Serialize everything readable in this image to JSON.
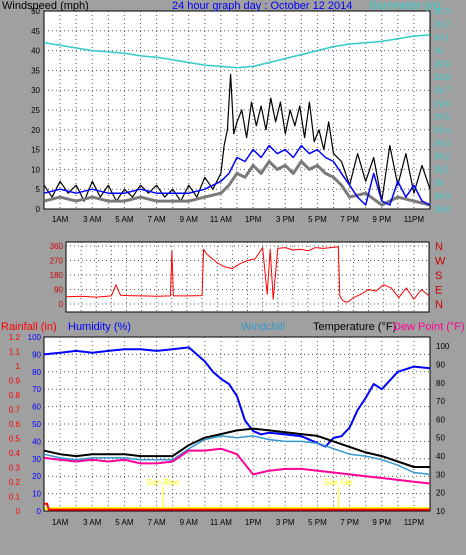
{
  "header": {
    "wind_label": "Windspeed (mph)",
    "title": "24 hour graph day : October 12 2014",
    "baro_label": "Barometer (in)"
  },
  "direction_labels": [
    "N",
    "W",
    "S",
    "E",
    "N"
  ],
  "bottom_header": {
    "rain_label": "Rainfall (in)",
    "humidity_label": "Humidity (%)",
    "windchill_label": "Windchill",
    "temp_label": "Temperature (°F)",
    "dew_label": "Dew Point (°F)"
  },
  "annotations": {
    "sunrise": "Sun Rise",
    "sunset": "Sun Set"
  },
  "colors": {
    "background": "#a0a0a0",
    "plot": "#ffffff",
    "grid": "#555555",
    "wind_gust": "#000000",
    "wind_avg": "#7a7a7a",
    "wind_dir": "#ff0000",
    "barometer": "#33cccc",
    "humidity": "#0000ff",
    "windchill": "#3399cc",
    "temperature": "#000000",
    "dewpoint": "#ff0099",
    "rain": "#ff0000",
    "sun": "#ffff00"
  },
  "chart_data": [
    {
      "type": "line",
      "title": "24 hour graph day : October 12 2014",
      "x_tick_labels": [
        "1AM",
        "3 AM",
        "5 AM",
        "7 AM",
        "9 AM",
        "11 AM",
        "1PM",
        "3 PM",
        "5 PM",
        "7 PM",
        "9 PM",
        "11PM"
      ],
      "xlim": [
        0,
        24
      ],
      "ylabel": "Windspeed (mph)",
      "ylim": [
        0,
        50
      ],
      "y_ticks": [
        0,
        5,
        10,
        15,
        20,
        25,
        30,
        35,
        40,
        45,
        50
      ],
      "y2label": "Barometer (in)",
      "y2lim": [
        28.8,
        30.3
      ],
      "y2_ticks": [
        "28.8",
        "28.9",
        "29",
        "29.1",
        "29.2",
        "29.3",
        "29.4",
        "29.5",
        "29.6",
        "29.7",
        "29.8",
        "29.9",
        "30",
        "30.1",
        "30.2",
        "30.3"
      ],
      "grid": true,
      "series": [
        {
          "name": "Wind gust",
          "axis": "y",
          "x": [
            0,
            0.5,
            1,
            1.5,
            2,
            2.5,
            3,
            3.5,
            4,
            4.5,
            5,
            5.5,
            6,
            6.5,
            7,
            7.5,
            8,
            8.5,
            9,
            9.5,
            10,
            10.5,
            11,
            11.2,
            11.4,
            11.6,
            11.8,
            12,
            12.3,
            12.6,
            12.9,
            13.2,
            13.5,
            13.8,
            14.1,
            14.4,
            14.7,
            15,
            15.3,
            15.6,
            15.9,
            16.2,
            16.5,
            16.8,
            17.1,
            17.4,
            17.7,
            18,
            18.5,
            19,
            19.5,
            20,
            20.5,
            21,
            21.5,
            22,
            22.5,
            23,
            23.5,
            24
          ],
          "y": [
            6,
            3,
            7,
            4,
            6,
            2,
            7,
            3,
            6,
            2,
            5,
            3,
            6,
            4,
            6,
            3,
            5,
            2,
            6,
            3,
            8,
            5,
            9,
            16,
            20,
            34,
            19,
            22,
            25,
            18,
            27,
            21,
            26,
            20,
            28,
            22,
            27,
            19,
            25,
            21,
            26,
            18,
            27,
            17,
            20,
            15,
            22,
            14,
            12,
            6,
            14,
            7,
            13,
            2,
            16,
            6,
            14,
            4,
            11,
            5
          ]
        },
        {
          "name": "Wind average",
          "axis": "y",
          "x": [
            0,
            1,
            2,
            3,
            4,
            5,
            6,
            7,
            8,
            9,
            10,
            11,
            11.5,
            12,
            12.5,
            13,
            13.5,
            14,
            14.5,
            15,
            15.5,
            16,
            16.5,
            17,
            17.5,
            18,
            18.5,
            19,
            20,
            21,
            22,
            23,
            24
          ],
          "y": [
            2,
            3,
            2,
            3,
            2,
            2,
            3,
            2,
            2,
            2,
            3,
            4,
            6,
            9,
            8,
            11,
            9,
            12,
            10,
            11,
            9,
            12,
            10,
            11,
            9,
            8,
            6,
            3,
            4,
            1,
            3,
            2,
            1
          ]
        },
        {
          "name": "Wind mean",
          "axis": "y",
          "x": [
            0,
            1,
            2,
            3,
            4,
            5,
            6,
            7,
            8,
            9,
            10,
            11,
            11.5,
            12,
            12.5,
            13,
            13.5,
            14,
            14.5,
            15,
            15.5,
            16,
            16.5,
            17,
            17.5,
            18,
            18.5,
            19,
            19.5,
            20,
            20.5,
            21,
            21.5,
            22,
            22.5,
            23,
            23.5,
            24
          ],
          "y": [
            4,
            5,
            4,
            5,
            4,
            4,
            5,
            4,
            4,
            4,
            5,
            7,
            9,
            13,
            12,
            15,
            13,
            16,
            14,
            15,
            13,
            16,
            14,
            15,
            13,
            12,
            9,
            6,
            3,
            1,
            9,
            2,
            1,
            7,
            3,
            6,
            2,
            1
          ]
        },
        {
          "name": "Barometer",
          "axis": "y2",
          "x": [
            0,
            1,
            2,
            3,
            4,
            5,
            6,
            7,
            8,
            9,
            10,
            11,
            12,
            13,
            14,
            15,
            16,
            17,
            18,
            19,
            20,
            21,
            22,
            23,
            24
          ],
          "y": [
            30.06,
            30.04,
            30.02,
            30.0,
            29.99,
            29.98,
            29.96,
            29.95,
            29.93,
            29.91,
            29.89,
            29.88,
            29.87,
            29.88,
            29.91,
            29.94,
            29.97,
            30.0,
            30.03,
            30.05,
            30.06,
            30.07,
            30.09,
            30.11,
            30.12
          ]
        }
      ]
    },
    {
      "type": "line",
      "ylabel": "Wind direction (degrees)",
      "ylim": [
        0,
        360
      ],
      "y_ticks": [
        0,
        90,
        180,
        270,
        360
      ],
      "xlim": [
        0,
        24
      ],
      "grid": true,
      "series": [
        {
          "name": "Wind direction",
          "x": [
            0,
            1,
            2,
            3,
            3.3,
            3.6,
            4,
            5,
            6,
            6.9,
            7,
            7.1,
            8,
            9,
            9.1,
            9.3,
            10,
            10.5,
            11,
            11.5,
            12,
            12.5,
            13,
            13.3,
            13.5,
            13.7,
            14,
            14.5,
            15,
            15.5,
            16,
            16.5,
            17,
            17.5,
            18,
            18.1,
            18.3,
            18.6,
            19,
            19.5,
            20,
            20.5,
            21,
            21.5,
            22,
            22.5,
            23,
            23.5,
            24
          ],
          "y": [
            45,
            48,
            43,
            50,
            120,
            55,
            52,
            50,
            48,
            50,
            330,
            50,
            50,
            52,
            340,
            310,
            255,
            230,
            220,
            250,
            270,
            280,
            350,
            60,
            340,
            30,
            345,
            350,
            335,
            340,
            330,
            350,
            345,
            350,
            355,
            50,
            20,
            10,
            40,
            60,
            90,
            80,
            120,
            100,
            40,
            100,
            30,
            90,
            50
          ]
        }
      ]
    },
    {
      "type": "line",
      "x_tick_labels": [
        "1AM",
        "3 AM",
        "5 AM",
        "7 AM",
        "9 AM",
        "11 AM",
        "1PM",
        "3 PM",
        "5 PM",
        "7 PM",
        "9 PM",
        "11PM"
      ],
      "xlim": [
        0,
        24
      ],
      "ylabel": "Humidity (%)",
      "ylim": [
        0,
        100
      ],
      "y_ticks": [
        0,
        10,
        20,
        30,
        40,
        50,
        60,
        70,
        80,
        90,
        100
      ],
      "rain_ticks": [
        "0",
        "0.1",
        "0.2",
        "0.3",
        "0.4",
        "0.5",
        "0.6",
        "0.7",
        "0.8",
        "0.9",
        "1",
        "1.1",
        "1.2"
      ],
      "temp_ticks": [
        10,
        20,
        30,
        40,
        50,
        60,
        70,
        80,
        90,
        100
      ],
      "temp_lim": [
        10,
        105
      ],
      "grid": true,
      "series": [
        {
          "name": "Humidity",
          "axis": "humidity",
          "x": [
            0,
            1,
            2,
            3,
            4,
            5,
            6,
            7,
            8,
            9,
            9.5,
            10,
            10.5,
            11,
            11.5,
            12,
            12.5,
            13,
            13.5,
            14,
            15,
            16,
            17,
            17.5,
            18,
            18.5,
            19,
            19.5,
            20,
            20.5,
            21,
            22,
            23,
            24
          ],
          "y": [
            90,
            91,
            92,
            91,
            92,
            93,
            93,
            92,
            93,
            94,
            90,
            86,
            80,
            76,
            73,
            66,
            52,
            46,
            44,
            45,
            44,
            43,
            39,
            37,
            42,
            43,
            48,
            58,
            65,
            73,
            70,
            80,
            83,
            82
          ]
        },
        {
          "name": "Temperature",
          "axis": "temp",
          "x": [
            0,
            1,
            2,
            3,
            4,
            5,
            6,
            7,
            8,
            9,
            10,
            11,
            12,
            13,
            14,
            15,
            16,
            17,
            18,
            19,
            20,
            21,
            22,
            23,
            24
          ],
          "y": [
            43,
            41,
            40,
            41,
            41,
            41,
            40,
            40,
            40,
            46,
            50,
            52,
            54,
            55,
            54,
            53,
            52,
            51,
            48,
            45,
            42,
            40,
            37,
            34,
            34
          ]
        },
        {
          "name": "Windchill",
          "axis": "temp",
          "x": [
            0,
            1,
            2,
            3,
            4,
            5,
            6,
            7,
            8,
            9,
            10,
            11,
            12,
            13,
            14,
            15,
            16,
            17,
            18,
            19,
            20,
            21,
            22,
            23,
            24
          ],
          "y": [
            41,
            39,
            38,
            39,
            39,
            39,
            38,
            38,
            38,
            44,
            49,
            51,
            50,
            51,
            49,
            48,
            48,
            47,
            44,
            41,
            40,
            38,
            35,
            31,
            30
          ]
        },
        {
          "name": "Dew Point",
          "axis": "temp",
          "x": [
            0,
            1,
            2,
            3,
            4,
            5,
            6,
            7,
            8,
            9,
            10,
            11,
            12,
            13,
            14,
            15,
            16,
            17,
            18,
            19,
            20,
            21,
            22,
            23,
            24
          ],
          "y": [
            39,
            38,
            37,
            38,
            37,
            38,
            36,
            36,
            37,
            43,
            43,
            44,
            41,
            30,
            32,
            33,
            33,
            32,
            31,
            30,
            29,
            28,
            27,
            26,
            25
          ]
        },
        {
          "name": "Rainfall",
          "axis": "rain",
          "x": [
            0,
            0.2,
            0.3,
            24
          ],
          "y": [
            0.05,
            0.05,
            0.01,
            0.01
          ]
        }
      ],
      "annotations": [
        {
          "text": "Sun Rise",
          "x": 7.4
        },
        {
          "text": "Sun Set",
          "x": 18.3
        }
      ]
    }
  ]
}
